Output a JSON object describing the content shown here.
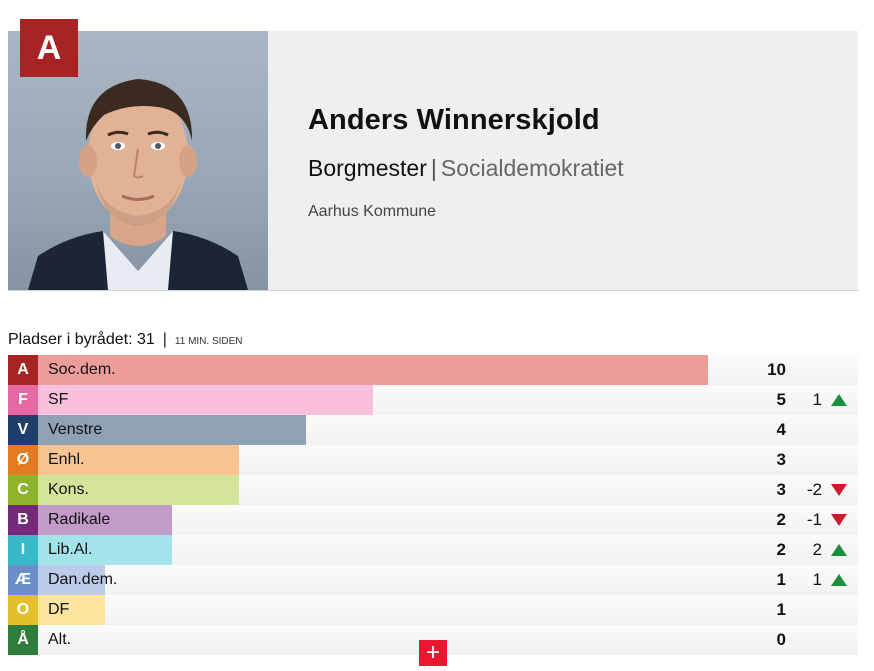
{
  "candidate": {
    "badge": "A",
    "badge_color": "#a82424",
    "name": "Anders Winnerskjold",
    "role": "Borgmester",
    "separator": "|",
    "party": "Socialdemokratiet",
    "municipality": "Aarhus Kommune"
  },
  "seats_header": {
    "label": "Pladser i byrådet: 31",
    "divider": "|",
    "updated": "11 MIN. SIDEN"
  },
  "total_seats": 31,
  "parties": [
    {
      "letter": "A",
      "name": "Soc.dem.",
      "seats": 10,
      "change": "",
      "direction": "",
      "letter_color": "#a82424",
      "bar_color": "#ec9c99"
    },
    {
      "letter": "F",
      "name": "SF",
      "seats": 5,
      "change": "1",
      "direction": "up",
      "letter_color": "#e56aa3",
      "bar_color": "#f9bfdb"
    },
    {
      "letter": "V",
      "name": "Venstre",
      "seats": 4,
      "change": "",
      "direction": "",
      "letter_color": "#1f3e6a",
      "bar_color": "#8fa1b5"
    },
    {
      "letter": "Ø",
      "name": "Enhl.",
      "seats": 3,
      "change": "",
      "direction": "",
      "letter_color": "#e27b22",
      "bar_color": "#f8c592"
    },
    {
      "letter": "C",
      "name": "Kons.",
      "seats": 3,
      "change": "-2",
      "direction": "down",
      "letter_color": "#8eb42c",
      "bar_color": "#d3e59b"
    },
    {
      "letter": "B",
      "name": "Radikale",
      "seats": 2,
      "change": "-1",
      "direction": "down",
      "letter_color": "#74297a",
      "bar_color": "#c39bc9"
    },
    {
      "letter": "I",
      "name": "Lib.Al.",
      "seats": 2,
      "change": "2",
      "direction": "up",
      "letter_color": "#39b8c8",
      "bar_color": "#a3e3ea"
    },
    {
      "letter": "Æ",
      "name": "Dan.dem.",
      "seats": 1,
      "change": "1",
      "direction": "up",
      "letter_color": "#6b8ec9",
      "bar_color": "#bccbea"
    },
    {
      "letter": "O",
      "name": "DF",
      "seats": 1,
      "change": "",
      "direction": "",
      "letter_color": "#e4bf2e",
      "bar_color": "#fbe59f"
    },
    {
      "letter": "Å",
      "name": "Alt.",
      "seats": 0,
      "change": "",
      "direction": "",
      "letter_color": "#2e7d3a",
      "bar_color": "#a8d4ad"
    }
  ],
  "expand_button": "+"
}
